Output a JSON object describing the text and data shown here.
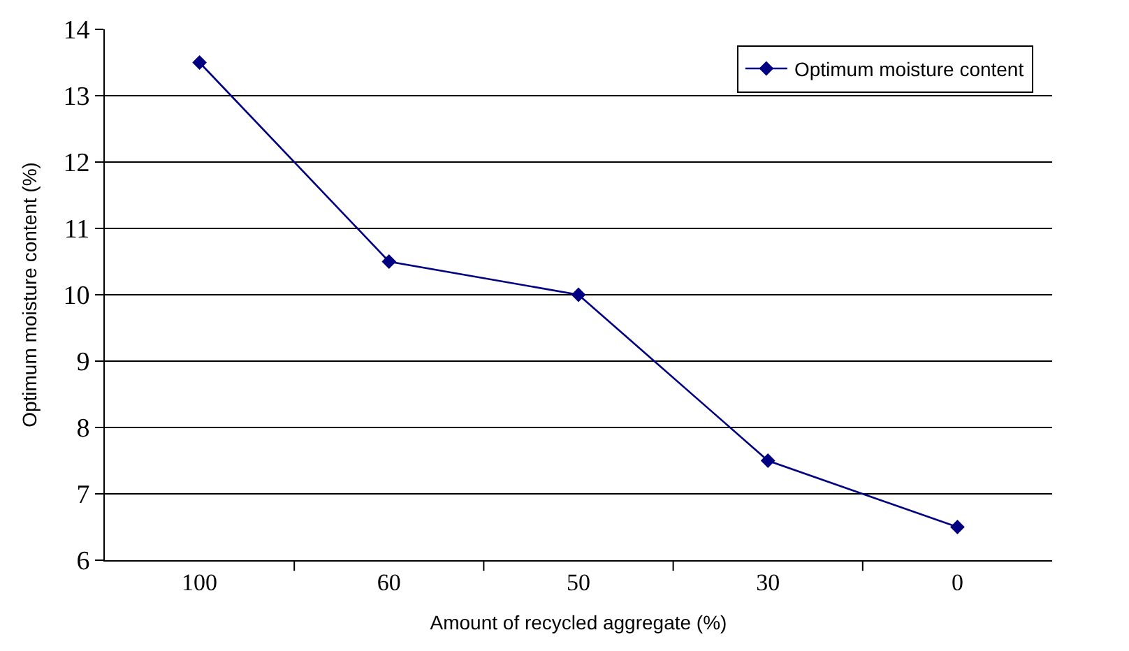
{
  "chart_data": {
    "type": "line",
    "xlabel": "Amount of recycled aggregate (%)",
    "ylabel": "Optimum moisture content (%)",
    "categories": [
      "100",
      "60",
      "50",
      "30",
      "0"
    ],
    "series": [
      {
        "name": "Optimum moisture content",
        "color": "#000080",
        "values": [
          13.5,
          10.5,
          10.0,
          7.5,
          6.5
        ]
      }
    ],
    "ylim": [
      6,
      14
    ],
    "yticks": [
      6,
      7,
      8,
      9,
      10,
      11,
      12,
      13,
      14
    ],
    "grid": "y",
    "legend": "top right",
    "marker": "diamond",
    "line_style": "solid"
  }
}
